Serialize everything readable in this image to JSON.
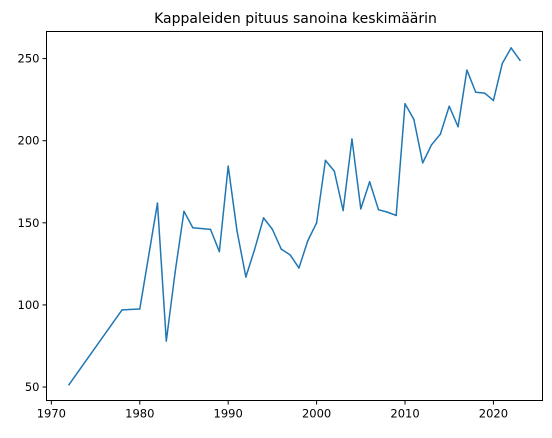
{
  "chart_data": {
    "type": "line",
    "title": "Kappaleiden pituus sanoina keskimäärin",
    "xlabel": "",
    "ylabel": "",
    "xlim": [
      1969.45,
      2025.55
    ],
    "ylim": [
      41.8,
      266.5
    ],
    "x_ticks": [
      1970,
      1980,
      1990,
      2000,
      2010,
      2020
    ],
    "y_ticks": [
      50,
      100,
      150,
      200,
      250
    ],
    "grid": false,
    "legend": "none",
    "series": [
      {
        "color": "#1f77b4",
        "x": [
          1972,
          1978,
          1980,
          1982,
          1983,
          1984,
          1985,
          1986,
          1988,
          1989,
          1990,
          1991,
          1992,
          1993,
          1994,
          1995,
          1996,
          1997,
          1998,
          1999,
          2000,
          2001,
          2002,
          2003,
          2004,
          2005,
          2006,
          2007,
          2008,
          2009,
          2010,
          2011,
          2012,
          2013,
          2014,
          2015,
          2016,
          2017,
          2018,
          2019,
          2020,
          2021,
          2022,
          2023
        ],
        "y": [
          51.5,
          97,
          97.5,
          162,
          78,
          120,
          157,
          147,
          146,
          132.5,
          184.5,
          145,
          117,
          134,
          153,
          146,
          134,
          130.5,
          122.5,
          139,
          150,
          188,
          181.5,
          157.5,
          201,
          158.5,
          175,
          158,
          156.5,
          154.5,
          222.5,
          213,
          186.5,
          197.5,
          204,
          221,
          208.5,
          243,
          229.5,
          229,
          224.5,
          247,
          256.5,
          249
        ]
      }
    ]
  }
}
